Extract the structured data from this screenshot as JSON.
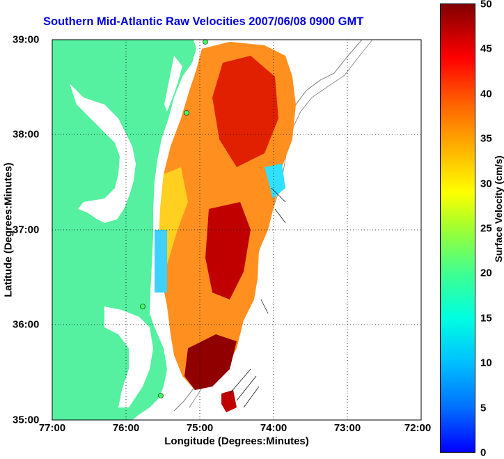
{
  "title": "Southern Mid-Atlantic Raw Velocities 2007/06/08 0900 GMT",
  "x_axis": {
    "label": "Longitude (Degrees:Minutes)",
    "ticks": [
      "77:00",
      "76:00",
      "75:00",
      "74:00",
      "73:00",
      "72:00"
    ]
  },
  "y_axis": {
    "label": "Latitude (Degrees:Minutes)",
    "ticks": [
      "39:00",
      "38:00",
      "37:00",
      "36:00",
      "35:00"
    ]
  },
  "colorbar": {
    "label": "Surface Velocity (cm/s)",
    "ticks": [
      "50",
      "45",
      "40",
      "35",
      "30",
      "25",
      "20",
      "15",
      "10",
      "5",
      "0"
    ],
    "range": [
      0,
      50
    ]
  },
  "colors": {
    "land": "#55f0a0",
    "title": "#0000e0",
    "grid": "#000000"
  },
  "chart_data": {
    "type": "heatmap",
    "xlim": [
      -77,
      -72
    ],
    "ylim": [
      35,
      39
    ],
    "grid": true,
    "legend_placement": "right"
  }
}
